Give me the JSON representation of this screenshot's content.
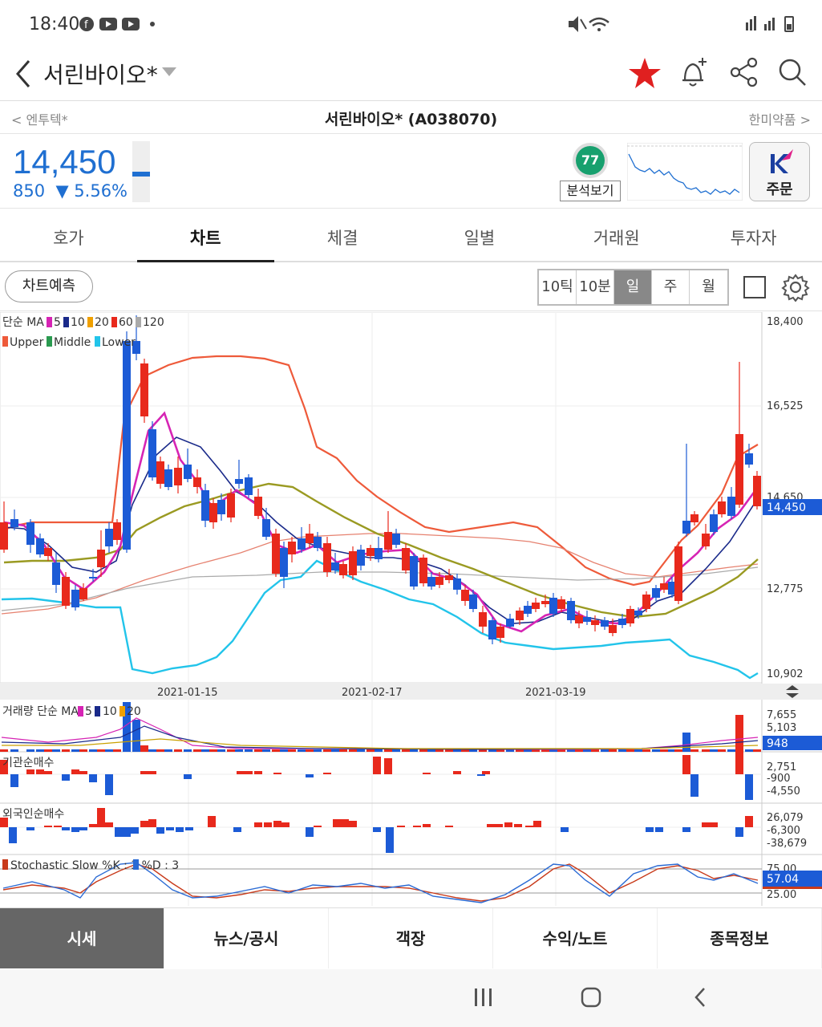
{
  "status": {
    "time": "18:40"
  },
  "header": {
    "title": "서린바이오*"
  },
  "sub": {
    "prev": "엔투텍*",
    "center": "서린바이오* (A038070)",
    "next": "한미약품"
  },
  "quote": {
    "price": "14,450",
    "change": "850",
    "rate": "5.56%",
    "score": "77",
    "analysis_label": "분석보기",
    "order_label": "주문"
  },
  "tabs": [
    "호가",
    "차트",
    "체결",
    "일별",
    "거래원",
    "투자자"
  ],
  "toolbar": {
    "predict": "차트예측",
    "periods": [
      "10틱",
      "10분",
      "일",
      "주",
      "월"
    ]
  },
  "chart": {
    "ma_legend": {
      "label": "단순 MA",
      "items": [
        "5",
        "10",
        "20",
        "60",
        "120"
      ]
    },
    "bb_legend": [
      "Upper",
      "Middle",
      "Lower"
    ],
    "price_axis": [
      "18,400",
      "16,525",
      "14,650",
      "12,775",
      "10,902"
    ],
    "current_tag": "14,450",
    "dates": [
      "2021-01-15",
      "2021-02-17",
      "2021-03-19"
    ],
    "volume": {
      "label": "거래량 단순 MA",
      "items": [
        "5",
        "10",
        "20"
      ],
      "axis": [
        "7,655",
        "5,103"
      ],
      "tag": "948"
    },
    "inst": {
      "label": "기관순매수",
      "axis": [
        "2,751",
        "-900",
        "-4,550"
      ]
    },
    "foreign": {
      "label": "외국인순매수",
      "axis": [
        "26,079",
        "-6,300",
        "-38,679"
      ]
    },
    "stoch": {
      "label": "Stochastic Slow %K : 3 %D : 3",
      "axis": [
        "75.00",
        "25.00"
      ],
      "tag": "57.04"
    }
  },
  "bottom_tabs": [
    "시세",
    "뉴스/공시",
    "객장",
    "수익/노트",
    "종목정보"
  ],
  "colors": {
    "up": "#e8291c",
    "down": "#1c5bd6",
    "accent": "#1f6fd1"
  }
}
